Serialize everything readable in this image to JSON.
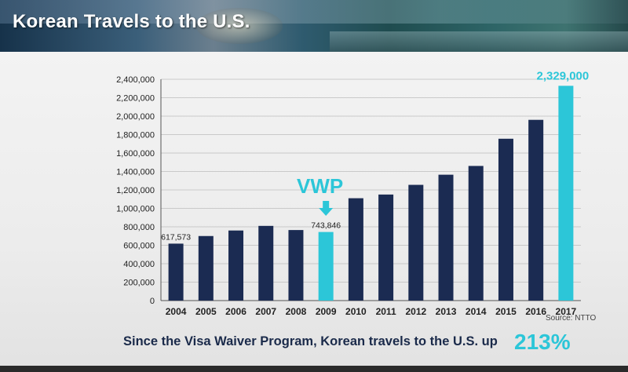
{
  "title": "Korean Travels to the U.S.",
  "footer": {
    "text": "Since the Visa Waiver Program, Korean travels to the U.S. up",
    "percent": "213%"
  },
  "source": "Source: NTTO",
  "annotation": {
    "label": "VWP",
    "year": "2009",
    "arrow": "down-arrow"
  },
  "colors": {
    "dark_bar": "#1b2b52",
    "highlight_bar": "#2cc6d8",
    "accent_text": "#2cc6d8"
  },
  "chart_data": {
    "type": "bar",
    "categories": [
      "2004",
      "2005",
      "2006",
      "2007",
      "2008",
      "2009",
      "2010",
      "2011",
      "2012",
      "2013",
      "2014",
      "2015",
      "2016",
      "2017"
    ],
    "values": [
      617573,
      700000,
      760000,
      810000,
      765000,
      743846,
      1110000,
      1150000,
      1255000,
      1365000,
      1460000,
      1755000,
      1960000,
      2329000
    ],
    "highlighted": [
      "2009",
      "2017"
    ],
    "data_labels": [
      {
        "category": "2004",
        "text": "617,573"
      },
      {
        "category": "2009",
        "text": "743,846"
      },
      {
        "category": "2017",
        "text": "2,329,000"
      }
    ],
    "y_ticks": [
      0,
      200000,
      400000,
      600000,
      800000,
      1000000,
      1200000,
      1400000,
      1600000,
      1800000,
      2000000,
      2200000,
      2400000
    ],
    "y_tick_labels": [
      "0",
      "200,000",
      "400,000",
      "600,000",
      "800,000",
      "1,000,000",
      "1,200,000",
      "1,400,000",
      "1,600,000",
      "1,800,000",
      "2,000,000",
      "2,200,000",
      "2,400,000"
    ],
    "ylim": [
      0,
      2400000
    ],
    "grid": true,
    "title": "",
    "xlabel": "",
    "ylabel": ""
  }
}
